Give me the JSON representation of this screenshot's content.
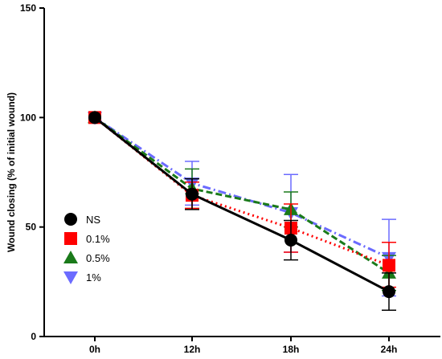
{
  "chart_data": {
    "type": "line",
    "xlabel": "",
    "ylabel": "Wound closing (% of initial wound)",
    "categories": [
      "0h",
      "12h",
      "18h",
      "24h"
    ],
    "ylim": [
      0,
      150
    ],
    "yticks": [
      0,
      50,
      100,
      150
    ],
    "grid": false,
    "legend_position": "left-middle",
    "series": [
      {
        "name": "NS",
        "color": "#000000",
        "marker": "circle",
        "line_style": "solid",
        "values": [
          100,
          65,
          44,
          20.5
        ],
        "err_low": [
          0,
          7,
          9,
          8.5
        ],
        "err_high": [
          0,
          7,
          9,
          8.5
        ]
      },
      {
        "name": "0.1%",
        "color": "#ff0000",
        "marker": "square",
        "line_style": "dotted",
        "values": [
          100,
          64.5,
          49.5,
          32.5
        ],
        "err_low": [
          0,
          6,
          11,
          10
        ],
        "err_high": [
          0,
          6,
          11,
          10.5
        ]
      },
      {
        "name": "0.5%",
        "color": "#1a7a1a",
        "marker": "triangle-up",
        "line_style": "dashed",
        "values": [
          100,
          67.5,
          58,
          29
        ],
        "err_low": [
          0,
          9,
          8,
          8
        ],
        "err_high": [
          0,
          9,
          8,
          8
        ]
      },
      {
        "name": "1%",
        "color": "#6b6bff",
        "marker": "triangle-down",
        "line_style": "dashdot",
        "values": [
          100,
          70,
          56.5,
          36
        ],
        "err_low": [
          0,
          10,
          18,
          17.5
        ],
        "err_high": [
          0,
          10,
          17.5,
          17.5
        ]
      }
    ]
  }
}
